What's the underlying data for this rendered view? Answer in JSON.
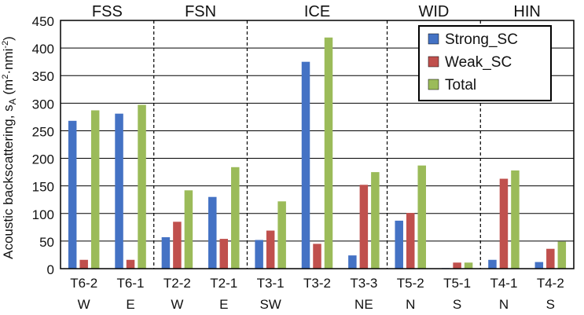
{
  "chart_data": {
    "type": "bar",
    "ylabel": "Acoustic backscattering, s",
    "ylabel_sub": "A",
    "ylabel_unit_open": " (m",
    "ylabel_unit_sup1": "2",
    "ylabel_unit_mid": "·nmi",
    "ylabel_unit_sup2": "-2",
    "ylabel_unit_close": ")",
    "ylim": [
      0,
      450
    ],
    "yticks": [
      "0",
      "50",
      "100",
      "150",
      "200",
      "250",
      "300",
      "350",
      "400",
      "450"
    ],
    "ytick_values": [
      0,
      50,
      100,
      150,
      200,
      250,
      300,
      350,
      400,
      450
    ],
    "grid": true,
    "legend_position": "top-right",
    "categories": [
      "T6-2",
      "T6-1",
      "T2-2",
      "T2-1",
      "T3-1",
      "T3-2",
      "T3-3",
      "T5-2",
      "T5-1",
      "T4-1",
      "T4-2"
    ],
    "sublabels": [
      "W",
      "E",
      "W",
      "E",
      "SW",
      "",
      "NE",
      "N",
      "S",
      "N",
      "S"
    ],
    "groups": [
      {
        "name": "FSS",
        "start": 0,
        "end": 1
      },
      {
        "name": "FSN",
        "start": 2,
        "end": 3
      },
      {
        "name": "ICE",
        "start": 4,
        "end": 6
      },
      {
        "name": "WID",
        "start": 7,
        "end": 8
      },
      {
        "name": "HIN",
        "start": 9,
        "end": 10
      }
    ],
    "series": [
      {
        "name": "Strong_SC",
        "color": "#4472c4",
        "values": [
          268,
          281,
          57,
          130,
          52,
          375,
          24,
          87,
          1,
          16,
          12
        ]
      },
      {
        "name": "Weak_SC",
        "color": "#c0504d",
        "values": [
          16,
          16,
          85,
          54,
          69,
          45,
          152,
          101,
          11,
          163,
          36
        ]
      },
      {
        "name": "Total",
        "color": "#9bbb59",
        "values": [
          287,
          297,
          142,
          184,
          122,
          419,
          175,
          187,
          11,
          178,
          49
        ]
      }
    ]
  }
}
